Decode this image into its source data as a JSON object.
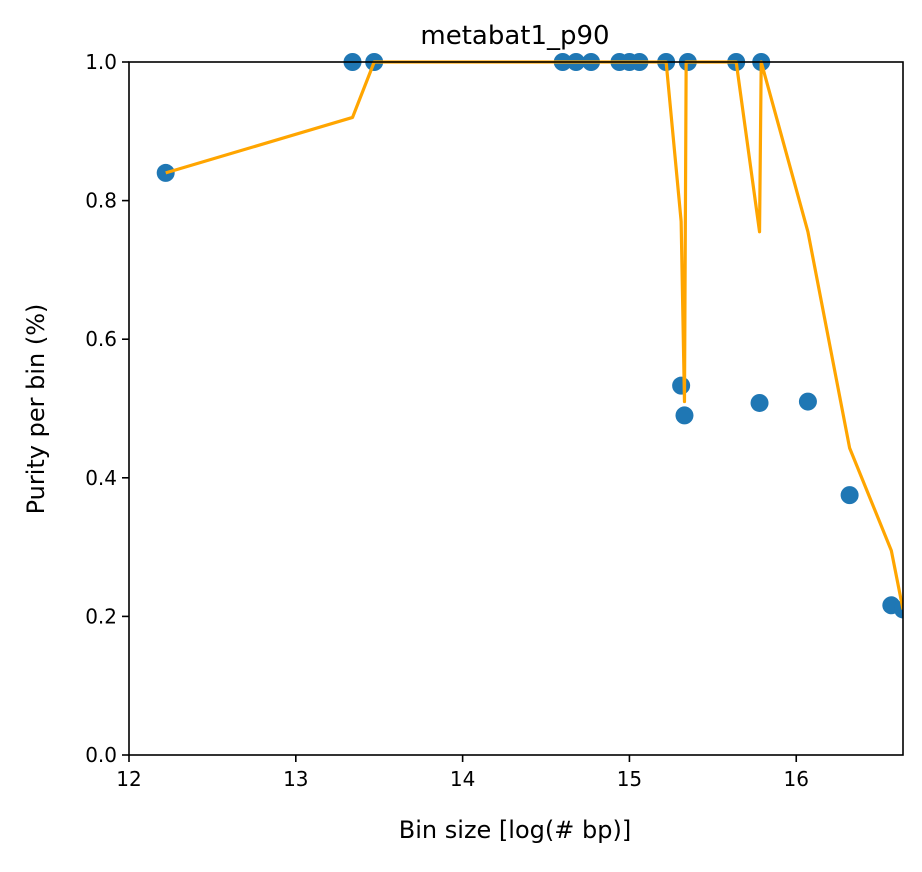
{
  "chart_data": {
    "type": "scatter",
    "title": "metabat1_p90",
    "xlabel": "Bin size [log(# bp)]",
    "ylabel": "Purity per bin (%)",
    "xlim": [
      12.0,
      16.64
    ],
    "ylim": [
      0.0,
      1.0
    ],
    "xticks": [
      12,
      13,
      14,
      15,
      16
    ],
    "yticks": [
      0.0,
      0.2,
      0.4,
      0.6,
      0.8,
      1.0
    ],
    "xtick_labels": [
      "12",
      "13",
      "14",
      "15",
      "16"
    ],
    "ytick_labels": [
      "0.0",
      "0.2",
      "0.4",
      "0.6",
      "0.8",
      "1.0"
    ],
    "grid": false,
    "colors": {
      "points": "#1f77b4",
      "trend_line": "#ffa500"
    },
    "series": [
      {
        "kind": "scatter",
        "x": [
          12.22,
          13.34,
          13.47,
          14.6,
          14.68,
          14.77,
          14.94,
          15.0,
          15.06,
          15.22,
          15.31,
          15.33,
          15.35,
          15.64,
          15.78,
          15.79,
          16.07,
          16.32,
          16.57,
          16.64
        ],
        "y": [
          0.84,
          1.0,
          1.0,
          1.0,
          1.0,
          1.0,
          1.0,
          1.0,
          1.0,
          1.0,
          0.533,
          0.49,
          1.0,
          1.0,
          0.508,
          1.0,
          0.51,
          0.375,
          0.216,
          0.21
        ]
      },
      {
        "kind": "line",
        "x": [
          12.22,
          13.34,
          13.47,
          14.6,
          15.22,
          15.31,
          15.33,
          15.34,
          15.64,
          15.78,
          15.79,
          16.07,
          16.32,
          16.57,
          16.64
        ],
        "y": [
          0.84,
          0.92,
          1.0,
          1.0,
          1.0,
          0.77,
          0.51,
          1.0,
          1.0,
          0.755,
          1.0,
          0.755,
          0.443,
          0.295,
          0.21
        ]
      }
    ]
  }
}
